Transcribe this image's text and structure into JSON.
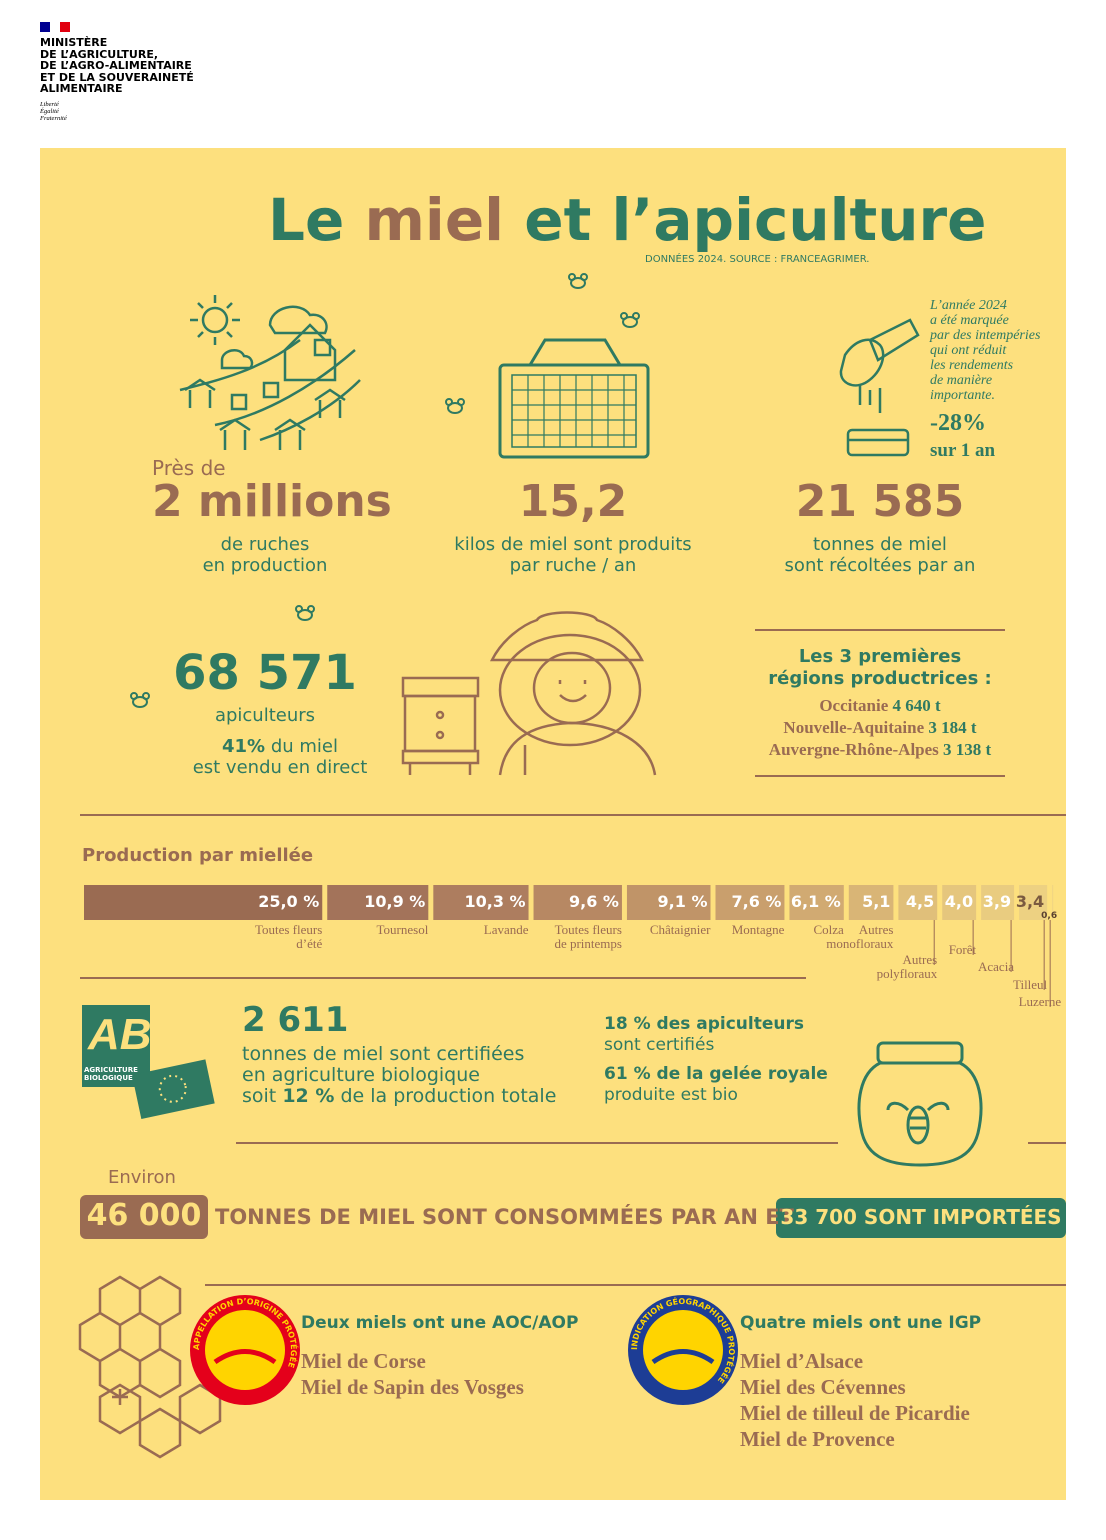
{
  "header": {
    "ministry": "MINISTÈRE\nDE L’AGRICULTURE,\nDE L’AGRO-ALIMENTAIRE\nET DE LA SOUVERAINETÉ\nALIMENTAIRE",
    "motto": "Liberté\nÉgalité\nFraternité"
  },
  "title": {
    "parts": [
      "Le",
      "miel",
      "et l’apiculture"
    ]
  },
  "source": "DONNÉES 2024. SOURCE : FRANCEAGRIMER.",
  "stats": {
    "hives": {
      "prefix": "Près de",
      "value": "2 millions",
      "caption": "de ruches\nen production"
    },
    "per_hive": {
      "value": "15,2",
      "caption": "kilos de miel sont produits\npar ruche / an"
    },
    "tonnes": {
      "value": "21 585",
      "caption": "tonnes de miel\nsont récoltées par an"
    },
    "note": {
      "text": "L’année 2024\na été marquée\npar des intempéries\nqui ont réduit\nles rendements\nde manière\nimportante.",
      "change": "-28%",
      "period": "sur 1 an"
    },
    "beekeepers": {
      "value": "68 571",
      "caption": "apiculteurs",
      "direct_pct": "41%",
      "direct_text": "du miel\nest vendu en direct"
    },
    "regions": {
      "title": "Les 3 premières\nrégions productrices :",
      "items": [
        {
          "name": "Occitanie",
          "value": "4 640 t"
        },
        {
          "name": "Nouvelle-Aquitaine",
          "value": "3 184 t"
        },
        {
          "name": "Auvergne-Rhône-Alpes",
          "value": "3 138 t"
        }
      ]
    }
  },
  "production": {
    "title": "Production par miellée",
    "segments": [
      {
        "name": "Toutes fleurs\nd’été",
        "value": 25.0,
        "value_label": "25,0 %",
        "color": "#9a6b52"
      },
      {
        "name": "Tournesol",
        "value": 10.9,
        "value_label": "10,9 %",
        "color": "#a3735a"
      },
      {
        "name": "Lavande",
        "value": 10.3,
        "value_label": "10,3 %",
        "color": "#ad7d5f"
      },
      {
        "name": "Toutes fleurs\nde printemps",
        "value": 9.6,
        "value_label": "9,6 %",
        "color": "#b78863"
      },
      {
        "name": "Châtaignier",
        "value": 9.1,
        "value_label": "9,1 %",
        "color": "#c09468"
      },
      {
        "name": "Montagne",
        "value": 7.6,
        "value_label": "7,6 %",
        "color": "#c99f6d"
      },
      {
        "name": "Colza",
        "value": 6.1,
        "value_label": "6,1 %",
        "color": "#d1aa72"
      },
      {
        "name": "Autres\nmonofloraux",
        "value": 5.1,
        "value_label": "5,1",
        "color": "#d9b576"
      },
      {
        "name": "Autres\npolyfloraux",
        "value": 4.5,
        "value_label": "4,5",
        "color": "#e0bf7a"
      },
      {
        "name": "Forêt",
        "value": 4.0,
        "value_label": "4,0",
        "color": "#e5c67d"
      },
      {
        "name": "Acacia",
        "value": 3.9,
        "value_label": "3,9",
        "color": "#e9cc80"
      },
      {
        "name": "Tilleul",
        "value": 3.4,
        "value_label": "3,4",
        "color": "#edd182"
      },
      {
        "name": "Luzerne",
        "value": 0.6,
        "value_label": "0,6",
        "color": "#efd484"
      }
    ]
  },
  "organic": {
    "logo": "AB",
    "logo_caption": "AGRICULTURE\nBIOLOGIQUE",
    "value": "2 611",
    "text": "tonnes de miel sont certifiées\nen agriculture biologique\nsoit",
    "share": "12 %",
    "text_end": "de la production totale",
    "certified": "18 % des apiculteurs",
    "certified_text": "sont certifiés",
    "royal_jelly": "61 % de la gelée royale",
    "royal_text": "produite est bio"
  },
  "consumption": {
    "prefix": "Environ",
    "consumed": "46 000",
    "text": "TONNES DE MIEL SONT CONSOMMÉES PAR AN ET",
    "imported": "33 700 SONT IMPORTÉES"
  },
  "labels": {
    "aoc": {
      "seal": "APPELLATION D’ORIGINE PROTÉGÉE",
      "title": "Deux miels ont une AOC/AOP",
      "items": [
        "Miel de Corse",
        "Miel de Sapin des Vosges"
      ]
    },
    "igp": {
      "seal": "INDICATION GÉOGRAPHIQUE PROTÉGÉE",
      "title": "Quatre miels ont une IGP",
      "items": [
        "Miel d’Alsace",
        "Miel des Cévennes",
        "Miel de tilleul de Picardie",
        "Miel de Provence"
      ]
    }
  }
}
